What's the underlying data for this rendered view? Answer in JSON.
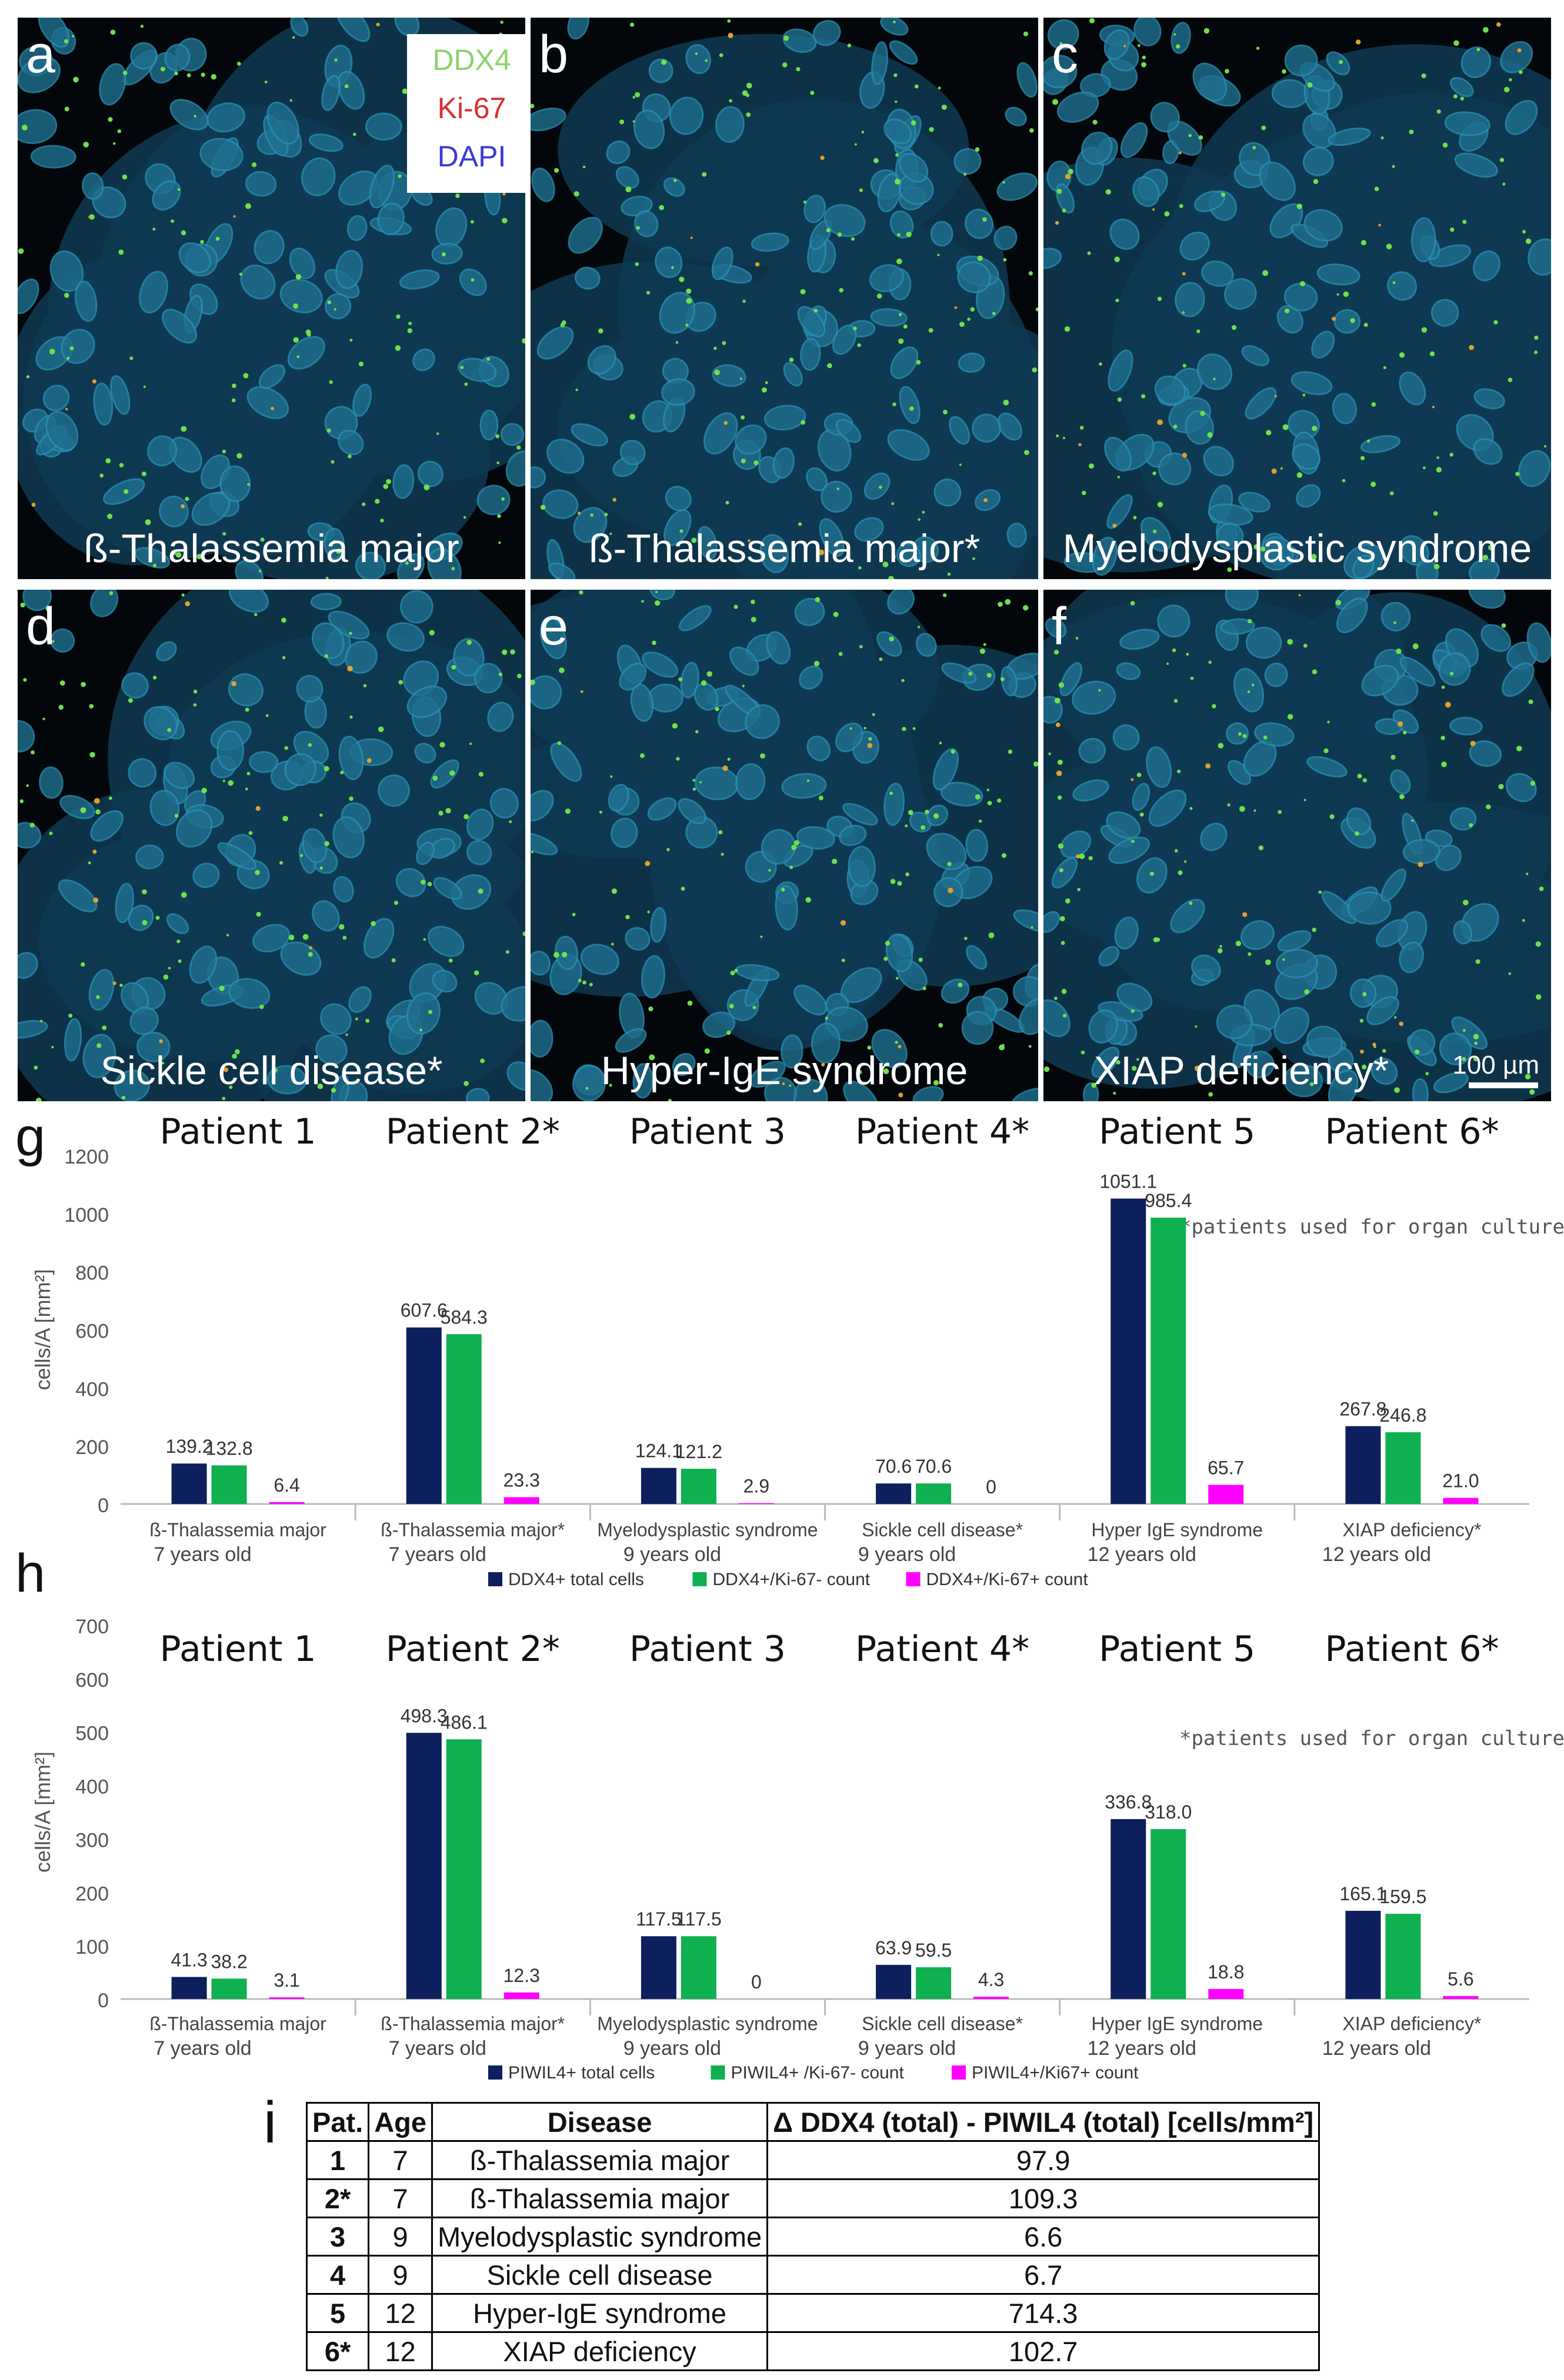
{
  "legend": {
    "ddx4": {
      "label": "DDX4",
      "color": "#8bd36a"
    },
    "ki67": {
      "label": "Ki-67",
      "color": "#d93030"
    },
    "dapi": {
      "label": "DAPI",
      "color": "#3a3ad6"
    }
  },
  "panels": [
    {
      "letter": "a",
      "caption": "ß-Thalassemia major"
    },
    {
      "letter": "b",
      "caption": "ß-Thalassemia major*"
    },
    {
      "letter": "c",
      "caption": "Myelodysplastic syndrome"
    },
    {
      "letter": "d",
      "caption": "Sickle cell disease*"
    },
    {
      "letter": "e",
      "caption": "Hyper-IgE syndrome"
    },
    {
      "letter": "f",
      "caption": "XIAP deficiency*"
    }
  ],
  "scale_bar": {
    "label": "100 µm"
  },
  "chart_data": [
    {
      "panel": "g",
      "type": "bar",
      "title": "",
      "xlabel": "",
      "ylabel": "cells/A [mm²]",
      "ylim": [
        0,
        1200
      ],
      "yticks": [
        0,
        200,
        400,
        600,
        800,
        1000,
        1200
      ],
      "patients": [
        "Patient 1",
        "Patient 2*",
        "Patient 3",
        "Patient 4*",
        "Patient 5",
        "Patient 6*"
      ],
      "categories": [
        "ß-Thalassemia major",
        "ß-Thalassemia major*",
        "Myelodysplastic syndrome",
        "Sickle cell disease*",
        "Hyper IgE syndrome",
        "XIAP deficiency*"
      ],
      "ages": [
        "7 years old",
        "7 years old",
        "9 years old",
        "9 years old",
        "12 years old",
        "12 years old"
      ],
      "note": "*patients used for organ culture",
      "series": [
        {
          "name": "DDX4+ total cells",
          "color": "#0d1f5c",
          "values": [
            139.2,
            607.6,
            124.1,
            70.6,
            1051.1,
            267.8
          ],
          "labels": [
            "139.2",
            "607.6",
            "124.1",
            "70.6",
            "1051.1",
            "267.8"
          ]
        },
        {
          "name": "DDX4+/Ki-67- count",
          "color": "#0fb04f",
          "values": [
            132.8,
            584.3,
            121.2,
            70.6,
            985.4,
            246.8
          ],
          "labels": [
            "132.8",
            "584.3",
            "121.2",
            "70.6",
            "985.4",
            "246.8"
          ]
        },
        {
          "name": "DDX4+/Ki-67+ count",
          "color": "#ff00ff",
          "values": [
            6.4,
            23.3,
            2.9,
            0,
            65.7,
            21.0
          ],
          "labels": [
            "6.4",
            "23.3",
            "2.9",
            "0",
            "65.7",
            "21.0"
          ]
        }
      ]
    },
    {
      "panel": "h",
      "type": "bar",
      "title": "",
      "xlabel": "",
      "ylabel": "cells/A [mm²]",
      "ylim": [
        0,
        700
      ],
      "yticks": [
        0,
        100,
        200,
        300,
        400,
        500,
        600,
        700
      ],
      "patients": [
        "Patient 1",
        "Patient 2*",
        "Patient 3",
        "Patient 4*",
        "Patient 5",
        "Patient 6*"
      ],
      "categories": [
        "ß-Thalassemia major",
        "ß-Thalassemia major*",
        "Myelodysplastic syndrome",
        "Sickle cell disease*",
        "Hyper IgE syndrome",
        "XIAP deficiency*"
      ],
      "ages": [
        "7 years old",
        "7 years old",
        "9 years old",
        "9 years old",
        "12 years old",
        "12 years old"
      ],
      "note": "*patients used for organ culture",
      "series": [
        {
          "name": "PIWIL4+ total cells",
          "color": "#0d1f5c",
          "values": [
            41.3,
            498.3,
            117.5,
            63.9,
            336.8,
            165.1
          ],
          "labels": [
            "41.3",
            "498.3",
            "117.5",
            "63.9",
            "336.8",
            "165.1"
          ]
        },
        {
          "name": "PIWIL4+ /Ki-67- count",
          "color": "#0fb04f",
          "values": [
            38.2,
            486.1,
            117.5,
            59.5,
            318.0,
            159.5
          ],
          "labels": [
            "38.2",
            "486.1",
            "117.5",
            "59.5",
            "318.0",
            "159.5"
          ]
        },
        {
          "name": "PIWIL4+/Ki67+ count",
          "color": "#ff00ff",
          "values": [
            3.1,
            12.3,
            0,
            4.3,
            18.8,
            5.6
          ],
          "labels": [
            "3.1",
            "12.3",
            "0",
            "4.3",
            "18.8",
            "5.6"
          ]
        }
      ]
    },
    {
      "panel": "i",
      "type": "table",
      "headers": [
        "Pat.",
        "Age",
        "Disease",
        "Δ DDX4 (total) - PIWIL4 (total) [cells/mm²]"
      ],
      "rows": [
        [
          "1",
          "7",
          "ß-Thalassemia major",
          "97.9"
        ],
        [
          "2*",
          "7",
          "ß-Thalassemia major",
          "109.3"
        ],
        [
          "3",
          "9",
          "Myelodysplastic syndrome",
          "6.6"
        ],
        [
          "4",
          "9",
          "Sickle cell disease",
          "6.7"
        ],
        [
          "5",
          "12",
          "Hyper-IgE syndrome",
          "714.3"
        ],
        [
          "6*",
          "12",
          "XIAP deficiency",
          "102.7"
        ]
      ]
    }
  ],
  "panel_letters": {
    "g": "g",
    "h": "h",
    "i": "i"
  }
}
